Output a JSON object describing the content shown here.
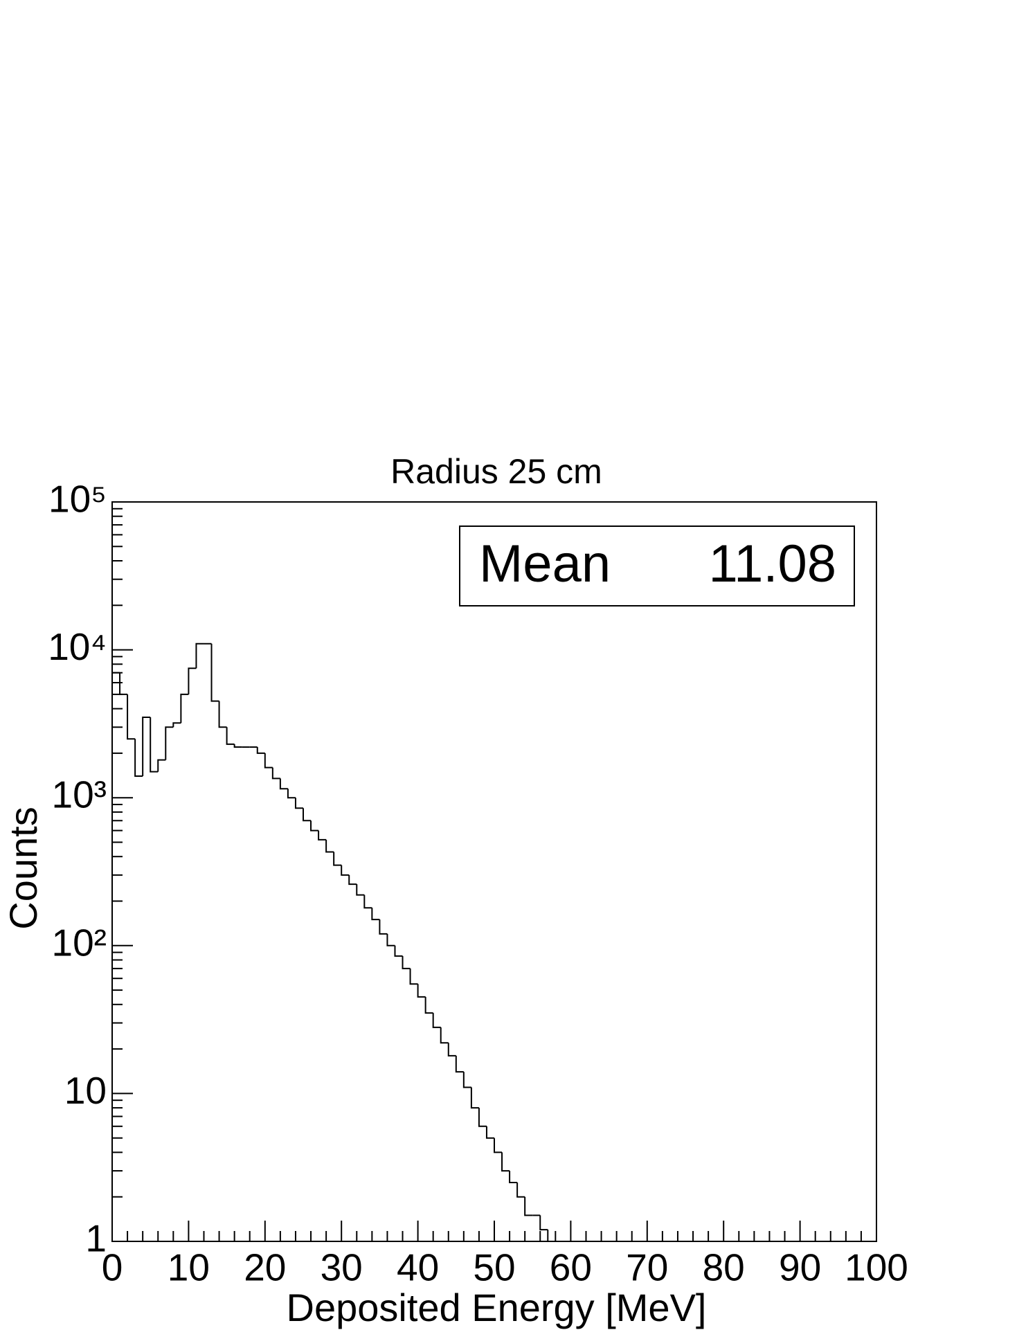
{
  "chart_data": {
    "type": "histogram",
    "title": "Radius 25 cm",
    "xlabel": "Deposited Energy [MeV]",
    "ylabel": "Counts",
    "bins": [
      0,
      1,
      2,
      3,
      4,
      5,
      6,
      7,
      8,
      9,
      10,
      11,
      12,
      13,
      14,
      15,
      16,
      17,
      18,
      19,
      20,
      21,
      22,
      23,
      24,
      25,
      26,
      27,
      28,
      29,
      30,
      31,
      32,
      33,
      34,
      35,
      36,
      37,
      38,
      39,
      40,
      41,
      42,
      43,
      44,
      45,
      46,
      47,
      48,
      49,
      50,
      51,
      52,
      53,
      54,
      55,
      56,
      57,
      58,
      59,
      60,
      61,
      62,
      63,
      64,
      65,
      66,
      67,
      68,
      69,
      70,
      71,
      72,
      73,
      74,
      75,
      76,
      77,
      78,
      79,
      80,
      81,
      82,
      83,
      84,
      85,
      86,
      87,
      88,
      89,
      90,
      91,
      92,
      93,
      94,
      95,
      96,
      97,
      98,
      99,
      100
    ],
    "values": [
      7000,
      5000,
      2500,
      1400,
      3500,
      1500,
      1800,
      3000,
      3200,
      5000,
      7500,
      11000,
      11000,
      4500,
      3000,
      2300,
      2200,
      2200,
      2200,
      2000,
      1600,
      1350,
      1150,
      1000,
      850,
      700,
      600,
      520,
      430,
      350,
      300,
      260,
      220,
      180,
      150,
      120,
      100,
      85,
      70,
      55,
      45,
      35,
      28,
      22,
      18,
      14,
      11,
      8,
      6,
      5,
      4,
      3,
      2.5,
      2,
      1.5,
      1.5,
      1.2,
      1,
      1,
      0,
      1,
      0,
      0,
      0,
      0,
      0,
      0,
      0,
      0,
      0,
      0,
      0,
      0,
      0,
      0,
      0,
      0,
      0,
      0,
      0,
      0,
      0,
      0,
      0,
      0,
      0,
      0,
      0,
      0,
      0,
      0,
      0,
      0,
      0,
      0,
      0,
      0,
      0,
      0,
      0
    ],
    "color": "#000000",
    "xlim": [
      0,
      100
    ],
    "xticks": [
      0,
      10,
      20,
      30,
      40,
      50,
      60,
      70,
      80,
      90,
      100
    ],
    "ylim": [
      1,
      100000
    ],
    "log_y": true,
    "yticks": [
      1,
      10,
      {
        "value": 100,
        "label": "10²"
      },
      {
        "value": 1000,
        "label": "10³"
      },
      {
        "value": 10000,
        "label": "10⁴"
      },
      {
        "value": 100000,
        "label": "10⁵"
      }
    ],
    "stats": {
      "name": "Mean",
      "value": "11.08"
    }
  }
}
